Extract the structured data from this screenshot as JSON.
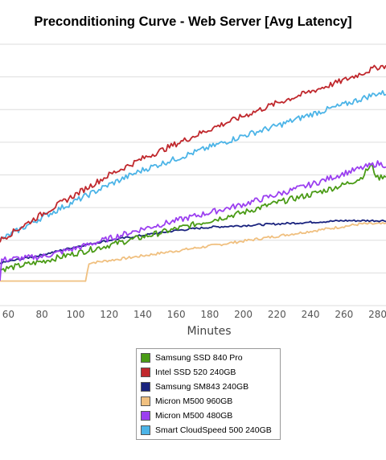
{
  "chart_data": {
    "type": "line",
    "title": "Preconditioning Curve - Web Server [Avg Latency]",
    "xlabel": "Minutes",
    "ylabel": "",
    "xlim": [
      55,
      285
    ],
    "ylim": [
      0,
      8
    ],
    "grid": true,
    "legend_position": "bottom",
    "x_ticks": [
      "60",
      "80",
      "100",
      "120",
      "140",
      "160",
      "180",
      "200",
      "220",
      "240",
      "260",
      "280"
    ],
    "series": [
      {
        "name": "Samsung SSD 840 Pro",
        "color": "#4a9b16",
        "x": [
          55,
          80,
          100,
          120,
          140,
          160,
          180,
          200,
          220,
          240,
          260,
          270,
          276,
          280,
          285
        ],
        "y": [
          1.1,
          1.35,
          1.6,
          1.85,
          2.1,
          2.35,
          2.6,
          2.85,
          3.15,
          3.4,
          3.7,
          3.9,
          4.3,
          3.9,
          4.0
        ]
      },
      {
        "name": "Intel SSD 520 240GB",
        "color": "#c0282d",
        "x": [
          55,
          80,
          100,
          120,
          140,
          160,
          180,
          200,
          220,
          240,
          260,
          280,
          285
        ],
        "y": [
          2.0,
          2.8,
          3.4,
          4.0,
          4.5,
          4.95,
          5.4,
          5.8,
          6.2,
          6.55,
          6.9,
          7.3,
          7.35
        ]
      },
      {
        "name": "Samsung SM843 240GB",
        "color": "#1a237e",
        "x": [
          55,
          80,
          100,
          120,
          140,
          160,
          180,
          200,
          220,
          240,
          260,
          285
        ],
        "y": [
          1.3,
          1.55,
          1.8,
          2.0,
          2.15,
          2.3,
          2.4,
          2.45,
          2.5,
          2.55,
          2.6,
          2.6
        ]
      },
      {
        "name": "Micron M500 960GB",
        "color": "#f0c080",
        "x": [
          55,
          70,
          90,
          106,
          108,
          130,
          150,
          170,
          190,
          210,
          230,
          250,
          270,
          285
        ],
        "y": [
          0.75,
          0.75,
          0.75,
          0.75,
          1.3,
          1.45,
          1.6,
          1.75,
          1.9,
          2.05,
          2.2,
          2.35,
          2.5,
          2.5
        ]
      },
      {
        "name": "Micron M500 480GB",
        "color": "#9b3ff0",
        "x": [
          55,
          56,
          80,
          100,
          120,
          140,
          160,
          180,
          200,
          220,
          240,
          260,
          280,
          285
        ],
        "y": [
          0.75,
          1.4,
          1.5,
          1.75,
          2.05,
          2.35,
          2.6,
          2.85,
          3.1,
          3.4,
          3.7,
          4.05,
          4.35,
          4.3
        ]
      },
      {
        "name": "Smart CloudSpeed 500 240GB",
        "color": "#4cb4e7",
        "x": [
          55,
          80,
          100,
          120,
          140,
          160,
          180,
          200,
          220,
          240,
          260,
          280,
          285
        ],
        "y": [
          2.0,
          2.7,
          3.2,
          3.7,
          4.15,
          4.5,
          4.85,
          5.2,
          5.5,
          5.85,
          6.15,
          6.5,
          6.5
        ]
      }
    ]
  }
}
